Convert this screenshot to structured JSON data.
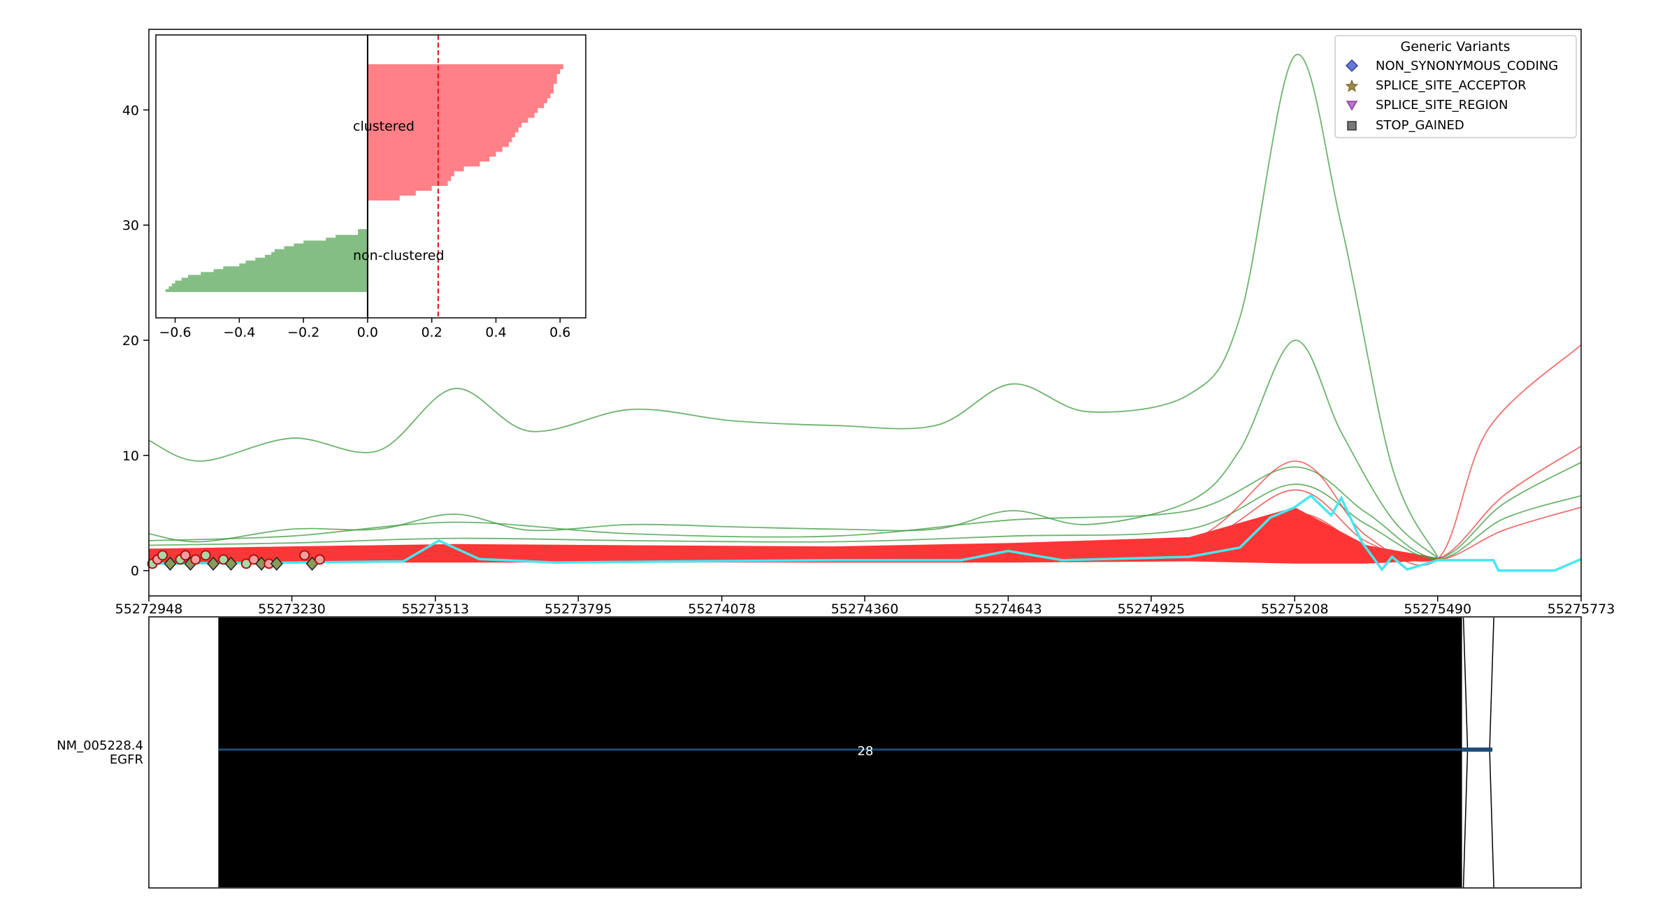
{
  "chart_data": [
    {
      "type": "line",
      "panel": "coverage",
      "x_ticks": [
        55272948,
        55273230,
        55273513,
        55273795,
        55274078,
        55274360,
        55274643,
        55274925,
        55275208,
        55275490,
        55275773
      ],
      "x_tick_labels": [
        "55272948",
        "55273230",
        "55273513",
        "55273795",
        "55274078",
        "55274360",
        "55274643",
        "55274925",
        "55275208",
        "55275490",
        "55275773"
      ],
      "xlim": [
        55272948,
        55275773
      ],
      "y_ticks": [
        0,
        10,
        20,
        30,
        40
      ],
      "y_tick_labels": [
        "0",
        "10",
        "20",
        "30",
        "40"
      ],
      "ylim": [
        -2.2,
        47
      ],
      "grid": false,
      "legend": {
        "title": "Generic Variants",
        "placement": "top-right",
        "entries": [
          {
            "label": "NON_SYNONYMOUS_CODING",
            "marker": "diamond",
            "color": "#6a78d8"
          },
          {
            "label": "SPLICE_SITE_ACCEPTOR",
            "marker": "star",
            "color": "#a08a40"
          },
          {
            "label": "SPLICE_SITE_REGION",
            "marker": "triangle-down",
            "color": "#c070d0"
          },
          {
            "label": "STOP_GAINED",
            "marker": "square",
            "color": "#666666"
          }
        ]
      },
      "series": [
        {
          "group": "non-clustered",
          "color": "#3c9a3c",
          "x": [
            55272948,
            55273050,
            55273230,
            55273400,
            55273550,
            55273700,
            55273900,
            55274100,
            55274300,
            55274500,
            55274650,
            55274800,
            55275000,
            55275100,
            55275208,
            55275300,
            55275400,
            55275490
          ],
          "y": [
            11.3,
            9.5,
            11.5,
            10.4,
            15.8,
            12.1,
            14.0,
            13.0,
            12.6,
            12.6,
            16.2,
            13.8,
            15.3,
            22.0,
            44.7,
            30.0,
            9.0,
            1.2
          ]
        },
        {
          "group": "non-clustered",
          "color": "#3c9a3c",
          "x": [
            55272948,
            55273050,
            55273230,
            55273400,
            55273550,
            55273700,
            55273900,
            55274100,
            55274300,
            55274500,
            55274650,
            55274800,
            55275000,
            55275100,
            55275208,
            55275300,
            55275400,
            55275490
          ],
          "y": [
            3.2,
            2.5,
            3.6,
            3.6,
            4.9,
            3.5,
            4.0,
            3.8,
            3.6,
            3.6,
            5.2,
            4.0,
            6.0,
            10.5,
            20.0,
            12.0,
            4.5,
            1.1
          ]
        },
        {
          "group": "non-clustered",
          "color": "#3c9a3c",
          "x": [
            55272948,
            55273230,
            55273550,
            55273900,
            55274300,
            55274650,
            55275000,
            55275208,
            55275350,
            55275490,
            55275620,
            55275773
          ],
          "y": [
            2.6,
            3.0,
            4.2,
            3.2,
            3.0,
            4.4,
            5.2,
            9.0,
            5.0,
            1.1,
            5.8,
            9.4
          ]
        },
        {
          "group": "non-clustered",
          "color": "#3c9a3c",
          "x": [
            55272948,
            55273230,
            55273550,
            55273900,
            55274300,
            55274650,
            55275000,
            55275208,
            55275350,
            55275490,
            55275620,
            55275773
          ],
          "y": [
            2.2,
            2.4,
            2.8,
            2.6,
            2.5,
            3.0,
            3.6,
            7.5,
            4.0,
            1.0,
            4.5,
            6.5
          ]
        },
        {
          "group": "clustered",
          "color": "#e84040",
          "x": [
            55272948,
            55273230,
            55273550,
            55273900,
            55274300,
            55274650,
            55275000,
            55275208,
            55275350,
            55275490,
            55275590,
            55275773
          ],
          "y": [
            1.5,
            1.7,
            2.0,
            1.8,
            1.7,
            2.0,
            2.6,
            9.5,
            3.0,
            1.0,
            12.3,
            19.6
          ]
        },
        {
          "group": "clustered",
          "color": "#e84040",
          "x": [
            55272948,
            55273230,
            55273550,
            55273900,
            55274300,
            55274650,
            55275000,
            55275208,
            55275350,
            55275490,
            55275620,
            55275773
          ],
          "y": [
            1.2,
            1.3,
            1.5,
            1.4,
            1.3,
            1.6,
            2.2,
            7.0,
            2.5,
            1.0,
            6.5,
            10.8
          ]
        },
        {
          "group": "clustered",
          "color": "#e84040",
          "x": [
            55272948,
            55273230,
            55273550,
            55273900,
            55274300,
            55274650,
            55275000,
            55275208,
            55275350,
            55275490,
            55275620,
            55275773
          ],
          "y": [
            0.9,
            1.0,
            1.1,
            1.0,
            1.0,
            1.2,
            1.6,
            5.0,
            2.0,
            0.9,
            3.5,
            5.5
          ]
        },
        {
          "group": "mean",
          "color": "#44e8f0",
          "x": [
            55272948,
            55273230,
            55273450,
            55273520,
            55273600,
            55273750,
            55274000,
            55274300,
            55274550,
            55274643,
            55274750,
            55275000,
            55275100,
            55275160,
            55275208,
            55275240,
            55275280,
            55275300,
            55275340,
            55275380,
            55275400,
            55275430,
            55275490,
            55275600,
            55275610,
            55275720,
            55275773
          ],
          "y": [
            0.6,
            0.7,
            0.8,
            2.6,
            1.0,
            0.7,
            0.8,
            0.9,
            0.9,
            1.7,
            0.9,
            1.2,
            2.0,
            4.6,
            5.5,
            6.5,
            4.8,
            6.3,
            2.5,
            0.1,
            1.2,
            0.1,
            0.9,
            0.9,
            0.0,
            0.0,
            1.0
          ]
        }
      ],
      "variants": [
        {
          "x": 55272955,
          "type": "STOP_GAINED"
        },
        {
          "x": 55272965,
          "type": "STOP_GAINED"
        },
        {
          "x": 55272975,
          "type": "STOP_GAINED"
        },
        {
          "x": 55272990,
          "type": "NON_SYNONYMOUS_CODING"
        },
        {
          "x": 55273010,
          "type": "STOP_GAINED"
        },
        {
          "x": 55273020,
          "type": "STOP_GAINED"
        },
        {
          "x": 55273030,
          "type": "NON_SYNONYMOUS_CODING"
        },
        {
          "x": 55273040,
          "type": "STOP_GAINED"
        },
        {
          "x": 55273060,
          "type": "STOP_GAINED"
        },
        {
          "x": 55273075,
          "type": "NON_SYNONYMOUS_CODING"
        },
        {
          "x": 55273095,
          "type": "STOP_GAINED"
        },
        {
          "x": 55273110,
          "type": "NON_SYNONYMOUS_CODING"
        },
        {
          "x": 55273140,
          "type": "STOP_GAINED"
        },
        {
          "x": 55273155,
          "type": "STOP_GAINED"
        },
        {
          "x": 55273170,
          "type": "NON_SYNONYMOUS_CODING"
        },
        {
          "x": 55273185,
          "type": "STOP_GAINED"
        },
        {
          "x": 55273200,
          "type": "NON_SYNONYMOUS_CODING"
        },
        {
          "x": 55273255,
          "type": "STOP_GAINED"
        },
        {
          "x": 55273270,
          "type": "NON_SYNONYMOUS_CODING"
        },
        {
          "x": 55273285,
          "type": "STOP_GAINED"
        }
      ]
    },
    {
      "type": "area",
      "panel": "inset",
      "labels": [
        "clustered",
        "non-clustered"
      ],
      "xlim": [
        -0.66,
        0.68
      ],
      "x_ticks": [
        -0.6,
        -0.4,
        -0.2,
        0.0,
        0.2,
        0.4,
        0.6
      ],
      "x_tick_labels": [
        "−0.6",
        "−0.4",
        "−0.2",
        "0.0",
        "0.2",
        "0.4",
        "0.6"
      ],
      "threshold": 0.22,
      "clustered_values": [
        0.61,
        0.6,
        0.59,
        0.59,
        0.58,
        0.58,
        0.57,
        0.56,
        0.55,
        0.53,
        0.52,
        0.5,
        0.48,
        0.47,
        0.46,
        0.45,
        0.44,
        0.42,
        0.4,
        0.38,
        0.35,
        0.3,
        0.27,
        0.26,
        0.25,
        0.2,
        0.15,
        0.1
      ],
      "nonclustered_values": [
        -0.03,
        -0.03,
        -0.1,
        -0.13,
        -0.2,
        -0.23,
        -0.26,
        -0.29,
        -0.3,
        -0.32,
        -0.35,
        -0.38,
        -0.4,
        -0.45,
        -0.48,
        -0.52,
        -0.56,
        -0.58,
        -0.6,
        -0.61,
        -0.62,
        -0.63
      ]
    },
    {
      "type": "table",
      "panel": "transcript",
      "track_label": "NM_005228.4",
      "gene_label": "EGFR",
      "exon_number": "28",
      "black_block_range": [
        55273085,
        55275538
      ],
      "exon_range": [
        55275538,
        55275598
      ],
      "track_color": "#1f4e79",
      "block_color": "#000000"
    }
  ]
}
